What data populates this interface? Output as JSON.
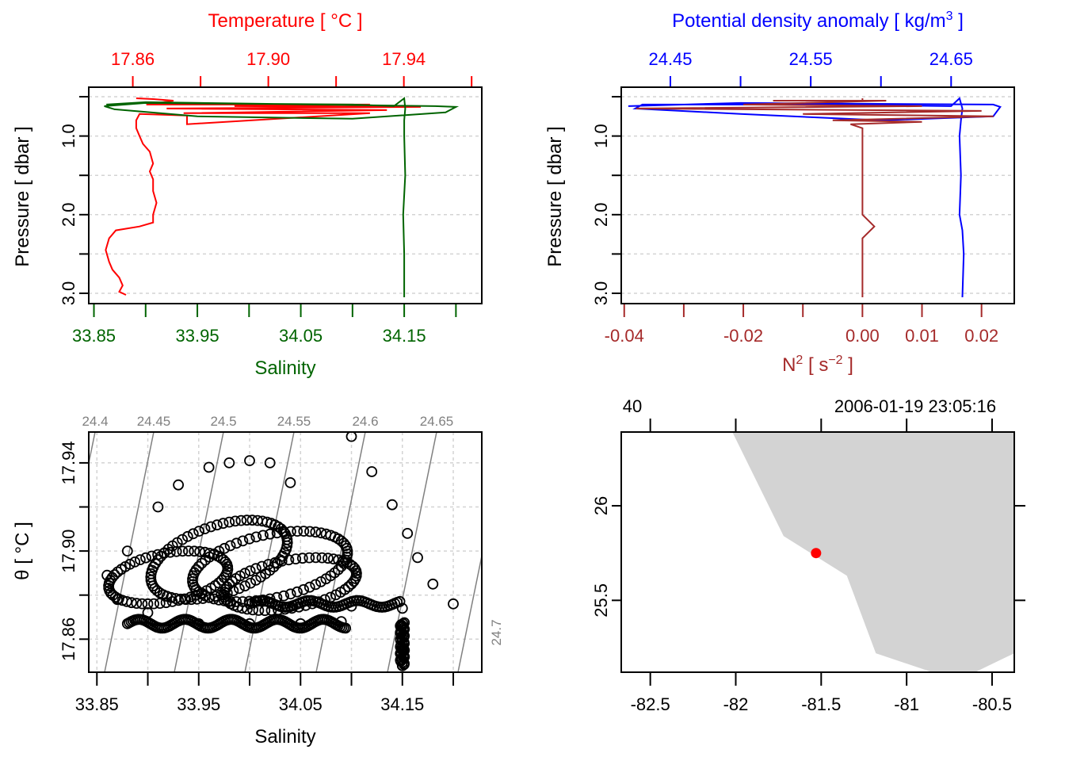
{
  "chart_data": [
    {
      "id": "profile_ts",
      "type": "line",
      "title": "",
      "top_axis": {
        "label": "Temperature [ °C ]",
        "color": "#ff0000",
        "range": [
          17.847,
          17.963
        ],
        "ticks": [
          17.86,
          17.88,
          17.9,
          17.92,
          17.94,
          17.96
        ],
        "tick_labels": [
          "17.86",
          "",
          "17.90",
          "",
          "17.94",
          ""
        ]
      },
      "bottom_axis": {
        "label": "Salinity",
        "color": "#006400",
        "range": [
          33.845,
          34.225
        ],
        "ticks": [
          33.85,
          33.9,
          33.95,
          34.0,
          34.05,
          34.1,
          34.15,
          34.2
        ],
        "tick_labels": [
          "33.85",
          "",
          "33.95",
          "",
          "34.05",
          "",
          "34.15",
          ""
        ]
      },
      "y_axis": {
        "label": "Pressure [ dbar ]",
        "range": [
          3.0,
          0.5
        ],
        "reversed": true,
        "ticks": [
          0.5,
          1.0,
          1.5,
          2.0,
          2.5,
          3.0
        ],
        "tick_labels": [
          "",
          "1.0",
          "",
          "2.0",
          "",
          "3.0"
        ]
      },
      "grid": true,
      "series": [
        {
          "name": "Temperature",
          "color": "#ff0000",
          "axis": "top",
          "points": [
            [
              17.861,
              0.52
            ],
            [
              17.866,
              0.53
            ],
            [
              17.872,
              0.55
            ],
            [
              17.864,
              0.6
            ],
            [
              17.93,
              0.6
            ],
            [
              17.89,
              0.62
            ],
            [
              17.945,
              0.63
            ],
            [
              17.87,
              0.65
            ],
            [
              17.935,
              0.67
            ],
            [
              17.875,
              0.71
            ],
            [
              17.93,
              0.71
            ],
            [
              17.876,
              0.85
            ],
            [
              17.876,
              0.74
            ],
            [
              17.862,
              0.72
            ],
            [
              17.861,
              0.8
            ],
            [
              17.861,
              0.9
            ],
            [
              17.862,
              1.0
            ],
            [
              17.863,
              1.1
            ],
            [
              17.865,
              1.2
            ],
            [
              17.866,
              1.35
            ],
            [
              17.865,
              1.45
            ],
            [
              17.866,
              1.55
            ],
            [
              17.866,
              1.7
            ],
            [
              17.867,
              1.85
            ],
            [
              17.866,
              2.0
            ],
            [
              17.866,
              2.1
            ],
            [
              17.862,
              2.15
            ],
            [
              17.855,
              2.2
            ],
            [
              17.853,
              2.3
            ],
            [
              17.852,
              2.45
            ],
            [
              17.853,
              2.6
            ],
            [
              17.854,
              2.7
            ],
            [
              17.856,
              2.8
            ],
            [
              17.857,
              2.9
            ],
            [
              17.856,
              2.98
            ],
            [
              17.858,
              3.02
            ]
          ]
        },
        {
          "name": "Salinity",
          "color": "#006400",
          "axis": "bottom",
          "points": [
            [
              33.862,
              0.6
            ],
            [
              33.9,
              0.57
            ],
            [
              34.18,
              0.62
            ],
            [
              34.2,
              0.63
            ],
            [
              34.19,
              0.7
            ],
            [
              34.1,
              0.78
            ],
            [
              33.95,
              0.75
            ],
            [
              33.87,
              0.66
            ],
            [
              33.86,
              0.62
            ],
            [
              33.9,
              0.58
            ],
            [
              34.1,
              0.6
            ],
            [
              34.14,
              0.62
            ],
            [
              34.15,
              0.52
            ],
            [
              34.151,
              0.65
            ],
            [
              34.15,
              0.8
            ],
            [
              34.15,
              1.0
            ],
            [
              34.151,
              1.5
            ],
            [
              34.149,
              2.0
            ],
            [
              34.15,
              2.5
            ],
            [
              34.15,
              3.05
            ]
          ]
        }
      ]
    },
    {
      "id": "profile_density_n2",
      "type": "line",
      "top_axis": {
        "label": "Potential density anomaly [ kg/m³ ]",
        "color": "#0000ff",
        "range": [
          24.415,
          24.695
        ],
        "ticks": [
          24.45,
          24.5,
          24.55,
          24.6,
          24.65
        ],
        "tick_labels": [
          "24.45",
          "",
          "24.55",
          "",
          "24.65"
        ]
      },
      "bottom_axis": {
        "label": "N² [ s⁻² ]",
        "color": "#a52a2a",
        "range": [
          -0.0405,
          0.0255
        ],
        "ticks": [
          -0.04,
          -0.03,
          -0.02,
          -0.01,
          0.0,
          0.01,
          0.02
        ],
        "tick_labels": [
          "-0.04",
          "",
          "-0.02",
          "",
          "0.00",
          "0.01",
          "0.02"
        ]
      },
      "y_axis": {
        "label": "Pressure [ dbar ]",
        "range": [
          3.0,
          0.5
        ],
        "reversed": true,
        "ticks": [
          0.5,
          1.0,
          1.5,
          2.0,
          2.5,
          3.0
        ],
        "tick_labels": [
          "",
          "1.0",
          "",
          "2.0",
          "",
          "3.0"
        ]
      },
      "grid": true,
      "series": [
        {
          "name": "Potential density anomaly",
          "color": "#0000ff",
          "axis": "top",
          "points": [
            [
              24.42,
              0.62
            ],
            [
              24.5,
              0.58
            ],
            [
              24.68,
              0.6
            ],
            [
              24.685,
              0.63
            ],
            [
              24.68,
              0.75
            ],
            [
              24.6,
              0.8
            ],
            [
              24.5,
              0.72
            ],
            [
              24.425,
              0.65
            ],
            [
              24.43,
              0.6
            ],
            [
              24.55,
              0.6
            ],
            [
              24.65,
              0.62
            ],
            [
              24.656,
              0.52
            ],
            [
              24.658,
              0.65
            ],
            [
              24.657,
              0.8
            ],
            [
              24.656,
              1.0
            ],
            [
              24.657,
              1.5
            ],
            [
              24.656,
              2.0
            ],
            [
              24.658,
              2.2
            ],
            [
              24.659,
              2.5
            ],
            [
              24.658,
              3.05
            ]
          ]
        },
        {
          "name": "N2",
          "color": "#a52a2a",
          "axis": "bottom",
          "points": [
            [
              0.0,
              0.52
            ],
            [
              0.0,
              0.55
            ],
            [
              -0.015,
              0.55
            ],
            [
              0.004,
              0.55
            ],
            [
              -0.02,
              0.6
            ],
            [
              0.01,
              0.62
            ],
            [
              -0.038,
              0.65
            ],
            [
              0.02,
              0.68
            ],
            [
              -0.01,
              0.72
            ],
            [
              0.022,
              0.75
            ],
            [
              -0.005,
              0.8
            ],
            [
              0.01,
              0.82
            ],
            [
              -0.002,
              0.85
            ],
            [
              0.0,
              0.9
            ],
            [
              0.0,
              1.0
            ],
            [
              0.0,
              1.5
            ],
            [
              0.0,
              2.0
            ],
            [
              0.002,
              2.15
            ],
            [
              0.0,
              2.3
            ],
            [
              0.0,
              2.6
            ],
            [
              0.0,
              3.05
            ]
          ]
        }
      ]
    },
    {
      "id": "ts_diagram",
      "type": "scatter",
      "xlabel": "Salinity",
      "ylabel": "θ [ °C ]",
      "x_axis": {
        "range": [
          33.842,
          34.228
        ],
        "ticks": [
          33.85,
          33.9,
          33.95,
          34.0,
          34.05,
          34.1,
          34.15,
          34.2
        ],
        "tick_labels": [
          "33.85",
          "",
          "33.95",
          "",
          "34.05",
          "",
          "34.15",
          ""
        ]
      },
      "y_axis": {
        "range": [
          17.845,
          17.954
        ],
        "ticks": [
          17.86,
          17.88,
          17.9,
          17.92,
          17.94
        ],
        "tick_labels": [
          "17.86",
          "",
          "17.90",
          "",
          "17.94"
        ]
      },
      "grid": true,
      "density_contours": {
        "color": "#808080",
        "levels": [
          24.4,
          24.45,
          24.5,
          24.55,
          24.6,
          24.65,
          24.7
        ],
        "labels": [
          "24.4",
          "24.45",
          "24.5",
          "24.55",
          "24.6",
          "24.65",
          "24.7"
        ]
      },
      "marker": "open-circle",
      "points_sample": [
        [
          34.1,
          17.952
        ],
        [
          34.12,
          17.936
        ],
        [
          34.14,
          17.921
        ],
        [
          34.155,
          17.908
        ],
        [
          34.165,
          17.897
        ],
        [
          34.18,
          17.885
        ],
        [
          34.2,
          17.876
        ],
        [
          34.15,
          17.874
        ],
        [
          34.1,
          17.875
        ],
        [
          34.0,
          17.941
        ],
        [
          34.02,
          17.94
        ],
        [
          34.04,
          17.931
        ],
        [
          33.98,
          17.94
        ],
        [
          33.96,
          17.938
        ],
        [
          33.93,
          17.93
        ],
        [
          33.91,
          17.92
        ],
        [
          33.88,
          17.9
        ],
        [
          33.86,
          17.889
        ],
        [
          33.87,
          17.878
        ],
        [
          33.9,
          17.872
        ],
        [
          33.95,
          17.867
        ],
        [
          34.0,
          17.867
        ],
        [
          34.05,
          17.867
        ],
        [
          34.09,
          17.868
        ],
        [
          34.15,
          17.866
        ],
        [
          34.15,
          17.855
        ],
        [
          34.15,
          17.848
        ]
      ]
    },
    {
      "id": "location_map",
      "type": "map",
      "x_axis": {
        "range": [
          -82.67,
          -80.37
        ],
        "ticks": [
          -82.5,
          -82.0,
          -81.5,
          -81.0,
          -80.5
        ],
        "tick_labels": [
          "-82.5",
          "-82",
          "-81.5",
          "-81",
          "-80.5"
        ]
      },
      "y_axis": {
        "range": [
          25.12,
          26.39
        ],
        "ticks": [
          25.5,
          26.0
        ],
        "tick_labels": [
          "25.5",
          "26"
        ]
      },
      "top_labels": [
        "40",
        "2006-01-19 23:05:16"
      ],
      "land_color": "#d3d3d3",
      "station": {
        "lon": -81.53,
        "lat": 25.75,
        "color": "#ff0000"
      },
      "coastline": [
        [
          -82.02,
          26.39
        ],
        [
          -81.72,
          25.84
        ],
        [
          -81.35,
          25.63
        ],
        [
          -81.18,
          25.22
        ],
        [
          -80.85,
          25.12
        ],
        [
          -80.6,
          25.12
        ],
        [
          -80.37,
          25.22
        ],
        [
          -80.37,
          26.39
        ]
      ]
    }
  ]
}
